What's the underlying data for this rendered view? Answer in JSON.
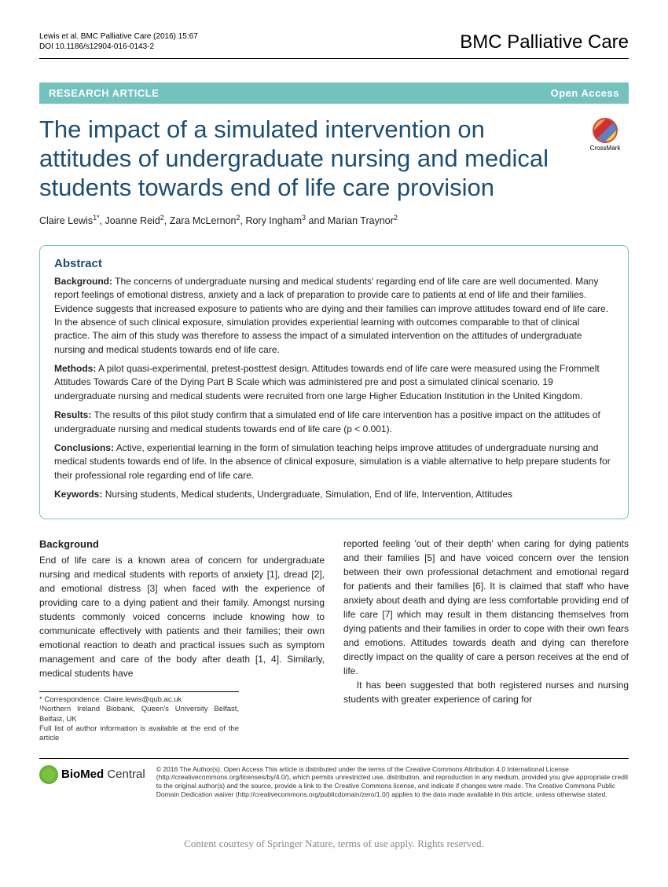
{
  "header": {
    "citation_line1": "Lewis et al. BMC Palliative Care  (2016) 15:67",
    "citation_line2": "DOI 10.1186/s12904-016-0143-2",
    "journal": "BMC Palliative Care"
  },
  "banner": {
    "left": "RESEARCH ARTICLE",
    "right": "Open Access"
  },
  "title": "The impact of a simulated intervention on attitudes of undergraduate nursing and medical students towards end of life care provision",
  "crossmark_label": "CrossMark",
  "authors_html": "Claire Lewis<sup>1*</sup>, Joanne Reid<sup>2</sup>, Zara McLernon<sup>2</sup>, Rory Ingham<sup>3</sup> and Marian Traynor<sup>2</sup>",
  "abstract": {
    "heading": "Abstract",
    "background_label": "Background:",
    "background": "The concerns of undergraduate nursing and medical students' regarding end of life care are well documented. Many report feelings of emotional distress, anxiety and a lack of preparation to provide care to patients at end of life and their families. Evidence suggests that increased exposure to patients who are dying and their families can improve attitudes toward end of life care. In the absence of such clinical exposure, simulation provides experiential learning with outcomes comparable to that of clinical practice. The aim of this study was therefore to assess the impact of a simulated intervention on the attitudes of undergraduate nursing and medical students towards end of life care.",
    "methods_label": "Methods:",
    "methods": "A pilot quasi-experimental, pretest-posttest design. Attitudes towards end of life care were measured using the Frommelt Attitudes Towards Care of the Dying Part B Scale which was administered pre and post a simulated clinical scenario. 19 undergraduate nursing and medical students were recruited from one large Higher Education Institution in the United Kingdom.",
    "results_label": "Results:",
    "results": "The results of this pilot study confirm that a simulated end of life care intervention has a positive impact on the attitudes of undergraduate nursing and medical students towards end of life care (p < 0.001).",
    "conclusions_label": "Conclusions:",
    "conclusions": "Active, experiential learning in the form of simulation teaching helps improve attitudes of undergraduate nursing and medical students towards end of life. In the absence of clinical exposure, simulation is a viable alternative to help prepare students for their professional role regarding end of life care.",
    "keywords_label": "Keywords:",
    "keywords": "Nursing students, Medical students, Undergraduate, Simulation, End of life, Intervention, Attitudes"
  },
  "body": {
    "bg_heading": "Background",
    "col1": "End of life care is a known area of concern for undergraduate nursing and medical students with reports of anxiety [1], dread [2], and emotional distress [3] when faced with the experience of providing care to a dying patient and their family. Amongst nursing students commonly voiced concerns include knowing how to communicate effectively with patients and their families; their own emotional reaction to death and practical issues such as symptom management and care of the body after death [1, 4]. Similarly, medical students have",
    "col2a": "reported feeling 'out of their depth' when caring for dying patients and their families [5] and have voiced concern over the tension between their own professional detachment and emotional regard for patients and their families [6]. It is claimed that staff who have anxiety about death and dying are less comfortable providing end of life care [7] which may result in them distancing themselves from dying patients and their families in order to cope with their own fears and emotions. Attitudes towards death and dying can therefore directly impact on the quality of care a person receives at the end of life.",
    "col2b": "It has been suggested that both registered nurses and nursing students with greater experience of caring for"
  },
  "footnotes": {
    "correspondence": "* Correspondence: Claire.lewis@qub.ac.uk",
    "affil1": "¹Northern Ireland Biobank, Queen's University Belfast, Belfast, UK",
    "affil_more": "Full list of author information is available at the end of the article"
  },
  "license": {
    "logo_text_bold": "BioMed",
    "logo_text_rest": " Central",
    "text": "© 2016 The Author(s). Open Access This article is distributed under the terms of the Creative Commons Attribution 4.0 International License (http://creativecommons.org/licenses/by/4.0/), which permits unrestricted use, distribution, and reproduction in any medium, provided you give appropriate credit to the original author(s) and the source, provide a link to the Creative Commons license, and indicate if changes were made. The Creative Commons Public Domain Dedication waiver (http://creativecommons.org/publicdomain/zero/1.0/) applies to the data made available in this article, unless otherwise stated."
  },
  "footer": "Content courtesy of Springer Nature, terms of use apply. Rights reserved."
}
